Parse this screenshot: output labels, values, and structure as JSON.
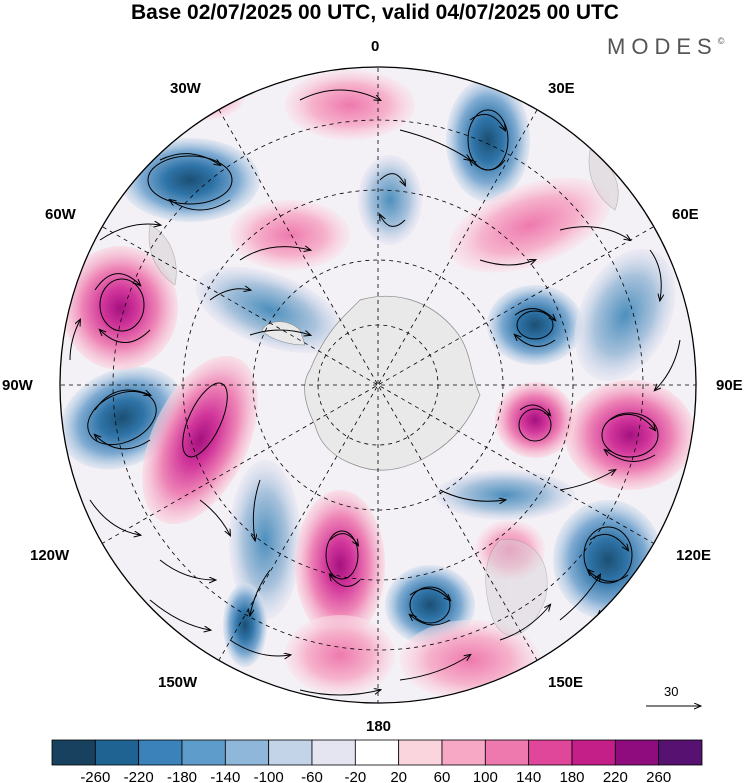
{
  "title": "Base 02/07/2025 00 UTC, valid 04/07/2025 00 UTC",
  "brand": "MODES",
  "brand_mark": "©",
  "map": {
    "projection": "polar-stereographic",
    "hemisphere": "south",
    "longitude_labels": {
      "top": "0",
      "upper_left": "30W",
      "upper_right": "30E",
      "left_upper": "60W",
      "right_upper": "60E",
      "left": "90W",
      "right": "90E",
      "left_lower": "120W",
      "right_lower": "120E",
      "lower_left": "150W",
      "lower_right": "150E",
      "bottom": "180"
    },
    "reference_vector_label": "30",
    "anomaly_colors": {
      "negative_strong": "#1b5a86",
      "negative": "#4d8fbd",
      "negative_weak": "#a8c2dc",
      "positive_weak": "#f7c8d6",
      "positive": "#ec7fb0",
      "positive_strong": "#c51b8a",
      "land": "#dcdcdc"
    }
  },
  "colorbar": {
    "ticks": [
      "-260",
      "-220",
      "-180",
      "-140",
      "-100",
      "-60",
      "-20",
      "20",
      "60",
      "100",
      "140",
      "180",
      "220",
      "260"
    ],
    "colors": [
      "#17415f",
      "#1f6393",
      "#3a82b9",
      "#5e9ccb",
      "#8eb7da",
      "#c3d3e8",
      "#e5e5f2",
      "#ffffff",
      "#fbd5de",
      "#f6a8c5",
      "#ee79ae",
      "#e0479a",
      "#c41e89",
      "#8e0c7d",
      "#571170"
    ]
  }
}
